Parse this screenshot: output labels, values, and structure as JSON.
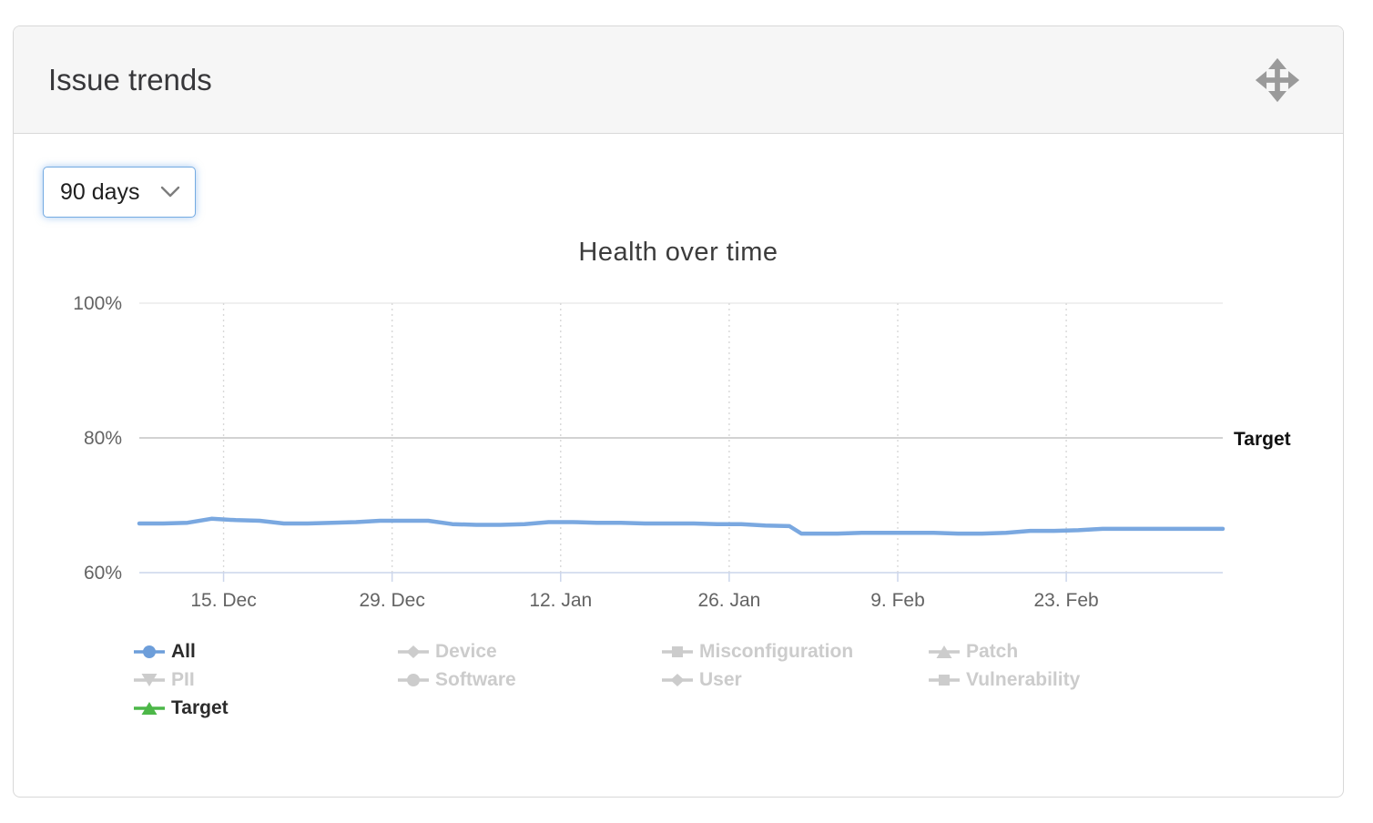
{
  "card": {
    "title": "Issue trends",
    "drag_icon": "move-icon"
  },
  "controls": {
    "period_dropdown": {
      "value": "90 days",
      "chevron_icon": "chevron-down-icon"
    }
  },
  "chart_data": {
    "type": "line",
    "title": "Health over time",
    "x_axis": {
      "range_days": 90,
      "ticks": [
        {
          "day": 7,
          "label": "15. Dec"
        },
        {
          "day": 21,
          "label": "29. Dec"
        },
        {
          "day": 35,
          "label": "12. Jan"
        },
        {
          "day": 49,
          "label": "26. Jan"
        },
        {
          "day": 63,
          "label": "9. Feb"
        },
        {
          "day": 77,
          "label": "23. Feb"
        }
      ],
      "grid": "dotted-vertical"
    },
    "y_axis": {
      "min": 60,
      "max": 100,
      "ticks": [
        {
          "value": 60,
          "label": "60%"
        },
        {
          "value": 80,
          "label": "80%"
        },
        {
          "value": 100,
          "label": "100%"
        }
      ]
    },
    "target_line": {
      "value": 80,
      "label": "Target"
    },
    "series": [
      {
        "name": "All",
        "color": "#7aa8e0",
        "visible": true,
        "points": [
          [
            0,
            67.3
          ],
          [
            2,
            67.3
          ],
          [
            4,
            67.4
          ],
          [
            6,
            68.0
          ],
          [
            8,
            67.8
          ],
          [
            10,
            67.7
          ],
          [
            12,
            67.3
          ],
          [
            14,
            67.3
          ],
          [
            16,
            67.4
          ],
          [
            18,
            67.5
          ],
          [
            20,
            67.7
          ],
          [
            22,
            67.7
          ],
          [
            24,
            67.7
          ],
          [
            26,
            67.2
          ],
          [
            28,
            67.1
          ],
          [
            30,
            67.1
          ],
          [
            32,
            67.2
          ],
          [
            34,
            67.5
          ],
          [
            36,
            67.5
          ],
          [
            38,
            67.4
          ],
          [
            40,
            67.4
          ],
          [
            42,
            67.3
          ],
          [
            44,
            67.3
          ],
          [
            46,
            67.3
          ],
          [
            48,
            67.2
          ],
          [
            50,
            67.2
          ],
          [
            52,
            67.0
          ],
          [
            54,
            66.9
          ],
          [
            55,
            65.8
          ],
          [
            56,
            65.8
          ],
          [
            58,
            65.8
          ],
          [
            60,
            65.9
          ],
          [
            62,
            65.9
          ],
          [
            64,
            65.9
          ],
          [
            66,
            65.9
          ],
          [
            68,
            65.8
          ],
          [
            70,
            65.8
          ],
          [
            72,
            65.9
          ],
          [
            74,
            66.2
          ],
          [
            76,
            66.2
          ],
          [
            78,
            66.3
          ],
          [
            80,
            66.5
          ],
          [
            82,
            66.5
          ],
          [
            84,
            66.5
          ],
          [
            86,
            66.5
          ],
          [
            88,
            66.5
          ],
          [
            90,
            66.5
          ]
        ]
      }
    ],
    "legend": [
      {
        "label": "All",
        "marker": "circle",
        "color": "#6d9eda",
        "enabled": true
      },
      {
        "label": "Device",
        "marker": "diamond",
        "color": "#cccccc",
        "enabled": false
      },
      {
        "label": "Misconfiguration",
        "marker": "square",
        "color": "#cccccc",
        "enabled": false
      },
      {
        "label": "Patch",
        "marker": "triangle",
        "color": "#cccccc",
        "enabled": false
      },
      {
        "label": "PII",
        "marker": "triangle-down",
        "color": "#cccccc",
        "enabled": false
      },
      {
        "label": "Software",
        "marker": "circle",
        "color": "#cccccc",
        "enabled": false
      },
      {
        "label": "User",
        "marker": "diamond",
        "color": "#cccccc",
        "enabled": false
      },
      {
        "label": "Vulnerability",
        "marker": "square",
        "color": "#cccccc",
        "enabled": false
      },
      {
        "label": "Target",
        "marker": "triangle",
        "color": "#4cb748",
        "enabled": true
      }
    ],
    "layout": {
      "grid_color": "#e6e6e6",
      "dotted_grid_color": "#d8d8d8",
      "axis_color": "#ccd6eb",
      "target_line_color": "#d2d2d2",
      "label_color": "#636363"
    }
  }
}
